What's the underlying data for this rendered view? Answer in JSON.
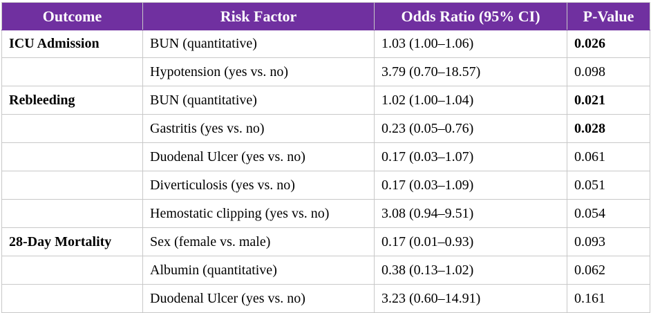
{
  "table": {
    "headers": {
      "outcome": "Outcome",
      "risk_factor": "Risk Factor",
      "odds_ratio": "Odds Ratio (95% CI)",
      "p_value": "P-Value"
    },
    "rows": [
      {
        "outcome": "ICU Admission",
        "risk_factor": "BUN (quantitative)",
        "odds_ratio": "1.03 (1.00–1.06)",
        "p_value": "0.026",
        "significant": true
      },
      {
        "outcome": "",
        "risk_factor": "Hypotension (yes vs. no)",
        "odds_ratio": "3.79 (0.70–18.57)",
        "p_value": "0.098",
        "significant": false
      },
      {
        "outcome": "Rebleeding",
        "risk_factor": "BUN (quantitative)",
        "odds_ratio": "1.02 (1.00–1.04)",
        "p_value": "0.021",
        "significant": true
      },
      {
        "outcome": "",
        "risk_factor": "Gastritis (yes vs. no)",
        "odds_ratio": "0.23 (0.05–0.76)",
        "p_value": "0.028",
        "significant": true
      },
      {
        "outcome": "",
        "risk_factor": "Duodenal Ulcer (yes vs. no)",
        "odds_ratio": "0.17 (0.03–1.07)",
        "p_value": "0.061",
        "significant": false
      },
      {
        "outcome": "",
        "risk_factor": "Diverticulosis (yes vs. no)",
        "odds_ratio": "0.17 (0.03–1.09)",
        "p_value": "0.051",
        "significant": false
      },
      {
        "outcome": "",
        "risk_factor": "Hemostatic clipping (yes vs. no)",
        "odds_ratio": "3.08 (0.94–9.51)",
        "p_value": "0.054",
        "significant": false
      },
      {
        "outcome": "28-Day Mortality",
        "risk_factor": "Sex (female vs. male)",
        "odds_ratio": "0.17 (0.01–0.93)",
        "p_value": "0.093",
        "significant": false
      },
      {
        "outcome": "",
        "risk_factor": "Albumin (quantitative)",
        "odds_ratio": "0.38 (0.13–1.02)",
        "p_value": "0.062",
        "significant": false
      },
      {
        "outcome": "",
        "risk_factor": "Duodenal Ulcer (yes vs. no)",
        "odds_ratio": "3.23 (0.60–14.91)",
        "p_value": "0.161",
        "significant": false
      }
    ]
  },
  "colors": {
    "header_background": "#7030a0",
    "header_text": "#ffffff",
    "grid_line": "#c8c8c8"
  }
}
